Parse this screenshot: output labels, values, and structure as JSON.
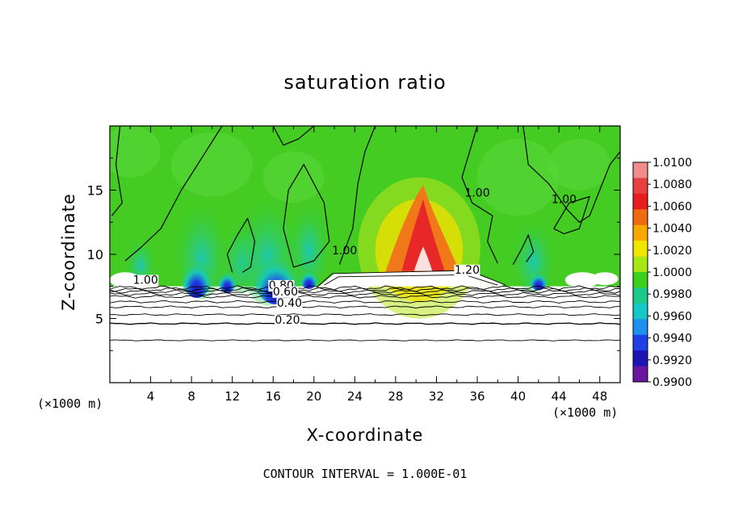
{
  "chart_data": {
    "type": "heatmap",
    "title": "saturation ratio",
    "xlabel": "X-coordinate",
    "ylabel": "Z-coordinate",
    "x_unit_left": "(×1000 m)",
    "x_unit_right": "(×1000 m)",
    "footer": "CONTOUR INTERVAL = 1.000E-01",
    "xlim": [
      0,
      50
    ],
    "ylim": [
      0,
      20
    ],
    "x_ticks": [
      4,
      8,
      12,
      16,
      20,
      24,
      28,
      32,
      36,
      40,
      44,
      48
    ],
    "x_tick_labels": [
      "4",
      "8",
      "12",
      "16",
      "20",
      "24",
      "28",
      "32",
      "36",
      "40",
      "44",
      "48"
    ],
    "y_ticks": [
      5,
      10,
      15
    ],
    "y_tick_labels": [
      "5",
      "10",
      "15"
    ],
    "colorbar": {
      "min": 0.99,
      "max": 1.01,
      "levels": [
        "1.0100",
        "1.0080",
        "1.0060",
        "1.0040",
        "1.0020",
        "1.0000",
        "0.9980",
        "0.9960",
        "0.9940",
        "0.9920",
        "0.9900"
      ],
      "colors": [
        "#f08c8c",
        "#e84040",
        "#e81e1e",
        "#f06a10",
        "#f8a800",
        "#f0e600",
        "#a8e614",
        "#3ccf1c",
        "#1ec88a",
        "#14c8c8",
        "#1e90f0",
        "#1e40e6",
        "#1e14b4",
        "#6a14a0"
      ]
    },
    "contour_labels": [
      {
        "text": "1.00",
        "x": 3.5,
        "z": 7.7
      },
      {
        "text": "1.00",
        "x": 23.0,
        "z": 10.0
      },
      {
        "text": "1.00",
        "x": 36.0,
        "z": 14.5
      },
      {
        "text": "1.00",
        "x": 44.5,
        "z": 14.0
      },
      {
        "text": "1.20",
        "x": 35.0,
        "z": 8.5
      },
      {
        "text": "0.80",
        "x": 16.8,
        "z": 7.3
      },
      {
        "text": "0.60",
        "x": 17.2,
        "z": 6.8
      },
      {
        "text": "0.40",
        "x": 17.6,
        "z": 5.9
      },
      {
        "text": "0.20",
        "x": 17.4,
        "z": 4.6
      }
    ]
  }
}
